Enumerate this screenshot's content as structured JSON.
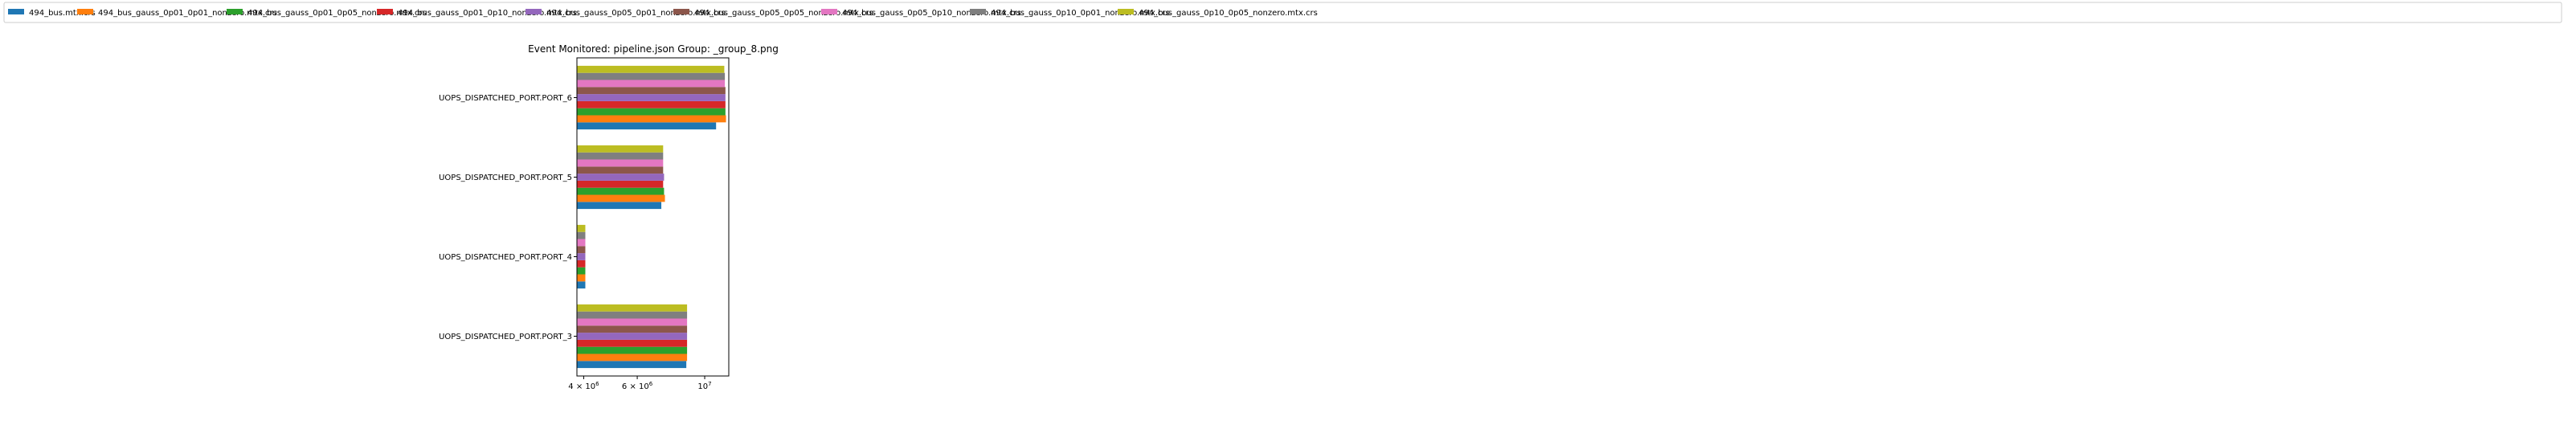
{
  "chart_data": {
    "type": "bar",
    "orientation": "horizontal",
    "title": "Event Monitored: pipeline.json Group: _group_8.png",
    "xlabel": "",
    "ylabel": "",
    "xscale": "log",
    "xlim": [
      3800000,
      12000000
    ],
    "xticks": [
      {
        "value": 4000000,
        "base": "4",
        "exp": "6"
      },
      {
        "value": 6000000,
        "base": "6",
        "exp": "6"
      },
      {
        "value": 10000000,
        "base": "10",
        "exp": "7"
      }
    ],
    "categories": [
      "UOPS_DISPATCHED_PORT.PORT_3",
      "UOPS_DISPATCHED_PORT.PORT_4",
      "UOPS_DISPATCHED_PORT.PORT_5",
      "UOPS_DISPATCHED_PORT.PORT_6"
    ],
    "legend_position": "top",
    "series": [
      {
        "name": "494_bus.mtx.crs",
        "color": "#1f77b4",
        "values": [
          8700000,
          4050000,
          7200000,
          10900000
        ]
      },
      {
        "name": "494_bus_gauss_0p01_0p01_nonzero.mtx.crs",
        "color": "#ff7f0e",
        "values": [
          8750000,
          4050000,
          7400000,
          11750000
        ]
      },
      {
        "name": "494_bus_gauss_0p01_0p05_nonzero.mtx.crs",
        "color": "#2ca02c",
        "values": [
          8750000,
          4050000,
          7350000,
          11700000
        ]
      },
      {
        "name": "494_bus_gauss_0p01_0p10_nonzero.mtx.crs",
        "color": "#d62728",
        "values": [
          8750000,
          4050000,
          7300000,
          11700000
        ]
      },
      {
        "name": "494_bus_gauss_0p05_0p01_nonzero.mtx.crs",
        "color": "#9467bd",
        "values": [
          8750000,
          4050000,
          7350000,
          11700000
        ]
      },
      {
        "name": "494_bus_gauss_0p05_0p05_nonzero.mtx.crs",
        "color": "#8c564b",
        "values": [
          8750000,
          4050000,
          7300000,
          11700000
        ]
      },
      {
        "name": "494_bus_gauss_0p05_0p10_nonzero.mtx.crs",
        "color": "#e377c2",
        "values": [
          8750000,
          4050000,
          7300000,
          11650000
        ]
      },
      {
        "name": "494_bus_gauss_0p10_0p01_nonzero.mtx.crs",
        "color": "#7f7f7f",
        "values": [
          8750000,
          4050000,
          7300000,
          11650000
        ]
      },
      {
        "name": "494_bus_gauss_0p10_0p05_nonzero.mtx.crs",
        "color": "#bcbd22",
        "values": [
          8750000,
          4050000,
          7300000,
          11600000
        ]
      }
    ]
  }
}
